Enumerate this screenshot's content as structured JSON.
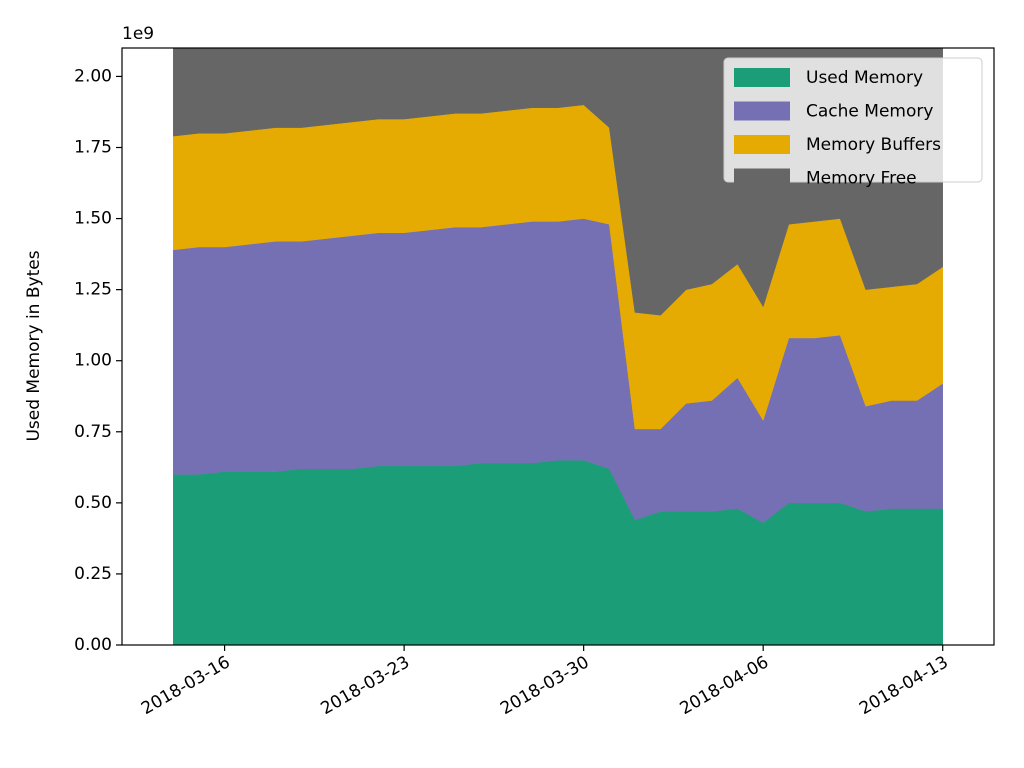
{
  "chart_data": {
    "type": "stacked_area",
    "y_label": "Used Memory in Bytes",
    "y_offset_label": "1e9",
    "x": [
      "2018-03-14",
      "2018-03-15",
      "2018-03-16",
      "2018-03-17",
      "2018-03-18",
      "2018-03-19",
      "2018-03-20",
      "2018-03-21",
      "2018-03-22",
      "2018-03-23",
      "2018-03-24",
      "2018-03-25",
      "2018-03-26",
      "2018-03-27",
      "2018-03-28",
      "2018-03-29",
      "2018-03-30",
      "2018-03-31",
      "2018-04-01",
      "2018-04-02",
      "2018-04-03",
      "2018-04-04",
      "2018-04-05",
      "2018-04-06",
      "2018-04-07",
      "2018-04-08",
      "2018-04-09",
      "2018-04-10",
      "2018-04-11",
      "2018-04-12",
      "2018-04-13"
    ],
    "series": [
      {
        "name": "Used Memory",
        "color": "#1b9e77",
        "values": [
          0.6,
          0.6,
          0.61,
          0.61,
          0.61,
          0.62,
          0.62,
          0.62,
          0.63,
          0.63,
          0.63,
          0.63,
          0.64,
          0.64,
          0.64,
          0.65,
          0.65,
          0.62,
          0.44,
          0.47,
          0.47,
          0.47,
          0.48,
          0.43,
          0.5,
          0.5,
          0.5,
          0.47,
          0.48,
          0.48,
          0.48
        ]
      },
      {
        "name": "Cache Memory",
        "color": "#7570b3",
        "values": [
          0.79,
          0.8,
          0.79,
          0.8,
          0.81,
          0.8,
          0.81,
          0.82,
          0.82,
          0.82,
          0.83,
          0.84,
          0.83,
          0.84,
          0.85,
          0.84,
          0.85,
          0.86,
          0.32,
          0.29,
          0.38,
          0.39,
          0.46,
          0.36,
          0.58,
          0.58,
          0.59,
          0.37,
          0.38,
          0.38,
          0.44
        ]
      },
      {
        "name": "Memory Buffers",
        "color": "#e6ab02",
        "values": [
          0.4,
          0.4,
          0.4,
          0.4,
          0.4,
          0.4,
          0.4,
          0.4,
          0.4,
          0.4,
          0.4,
          0.4,
          0.4,
          0.4,
          0.4,
          0.4,
          0.4,
          0.34,
          0.41,
          0.4,
          0.4,
          0.41,
          0.4,
          0.4,
          0.4,
          0.41,
          0.41,
          0.41,
          0.4,
          0.41,
          0.41
        ]
      },
      {
        "name": "Memory Free",
        "color": "#666666",
        "values": [
          0.31,
          0.3,
          0.3,
          0.29,
          0.28,
          0.28,
          0.27,
          0.26,
          0.25,
          0.25,
          0.24,
          0.23,
          0.23,
          0.22,
          0.21,
          0.21,
          0.2,
          0.28,
          0.93,
          0.94,
          0.85,
          0.83,
          0.76,
          0.91,
          0.62,
          0.61,
          0.6,
          0.85,
          0.84,
          0.83,
          0.77
        ]
      }
    ],
    "xlim": [
      "2018-03-12",
      "2018-04-15"
    ],
    "xticks": [
      "2018-03-16",
      "2018-03-23",
      "2018-03-30",
      "2018-04-06",
      "2018-04-13"
    ],
    "ylim": [
      0,
      2.1
    ],
    "yticks": [
      {
        "value": 0,
        "label": "0.00"
      },
      {
        "value": 0.25,
        "label": "0.25"
      },
      {
        "value": 0.5,
        "label": "0.50"
      },
      {
        "value": 0.75,
        "label": "0.75"
      },
      {
        "value": 1,
        "label": "1.00"
      },
      {
        "value": 1.25,
        "label": "1.25"
      },
      {
        "value": 1.5,
        "label": "1.50"
      },
      {
        "value": 1.75,
        "label": "1.75"
      },
      {
        "value": 2,
        "label": "2.00"
      }
    ],
    "legend": "upper right"
  }
}
